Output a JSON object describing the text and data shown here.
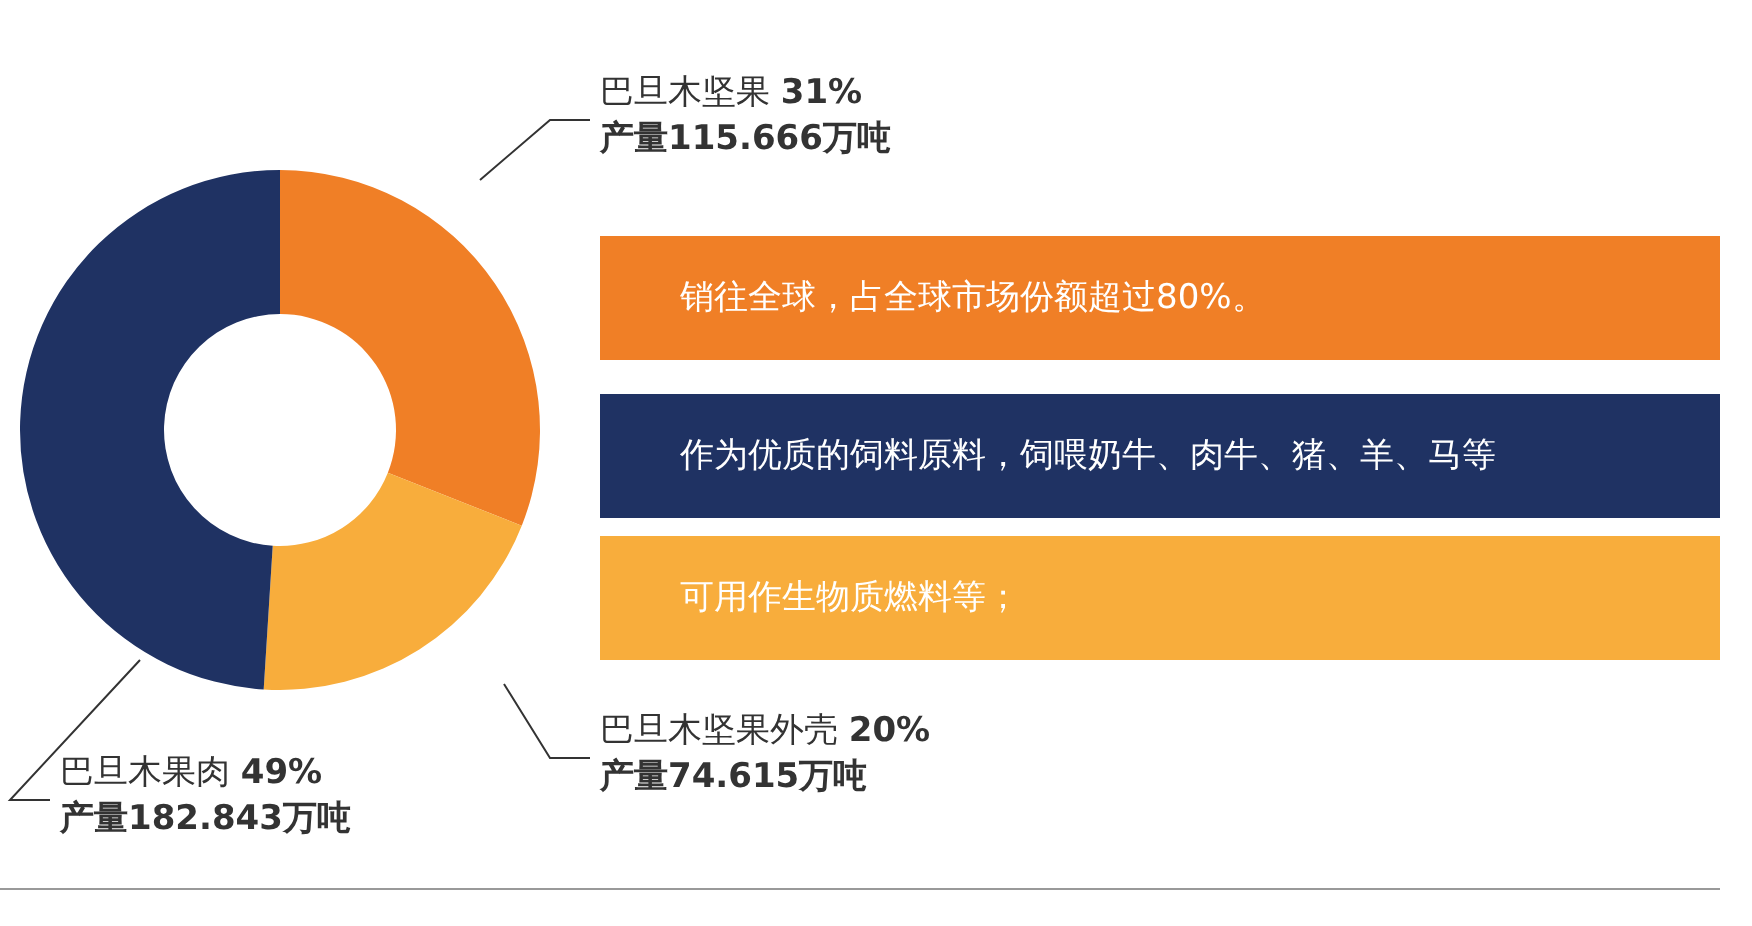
{
  "chart_data": {
    "type": "donut",
    "categories": [
      "巴旦木坚果",
      "巴旦木坚果外壳",
      "巴旦木果肉"
    ],
    "values": [
      31,
      20,
      49
    ],
    "colors": [
      "#f07f26",
      "#f8ad3c",
      "#1f3263"
    ],
    "value_labels": [
      "31%",
      "20%",
      "49%"
    ],
    "legend": false,
    "annotations": [
      "产量115.666万吨",
      "产量74.615万吨",
      "产量182.843万吨",
      "销往全球，占全球市场份额超过80%。",
      "可用作生物质燃料等；",
      "作为优质的饲料原料，饲喂奶牛、肉牛、猪、羊、马等"
    ]
  }
}
